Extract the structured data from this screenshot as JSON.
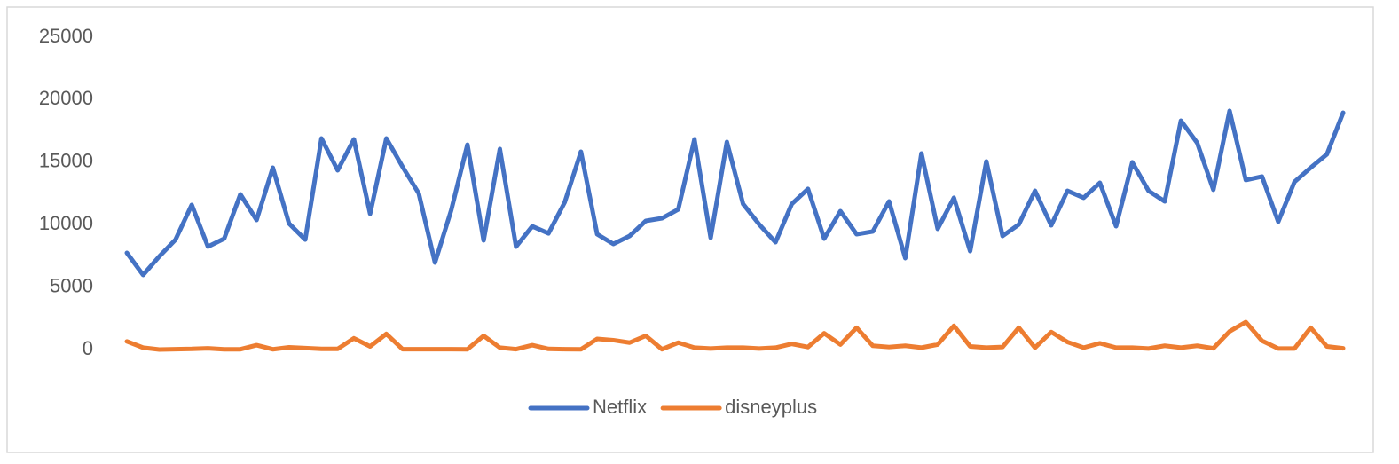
{
  "chart_data": {
    "type": "line",
    "categories": [
      null,
      null,
      null,
      null,
      null,
      null,
      null,
      null,
      null,
      null,
      null,
      null,
      null,
      null,
      null,
      null,
      null,
      null,
      null,
      null,
      null,
      null,
      null,
      null,
      null,
      null,
      null,
      null,
      null,
      null,
      null,
      null,
      null,
      null,
      null,
      null,
      null,
      null,
      null,
      null,
      null,
      null,
      null,
      null,
      null,
      null,
      null,
      null,
      null,
      null,
      null,
      null,
      null,
      null,
      null,
      null,
      null,
      null,
      null,
      null,
      null,
      null,
      null,
      null,
      null,
      null,
      null,
      null,
      null,
      null,
      null,
      null,
      null,
      null,
      null,
      null
    ],
    "series": [
      {
        "name": "Netflix",
        "color": "#4472c4",
        "values": [
          7740,
          5970,
          7460,
          8800,
          11580,
          8240,
          8880,
          12430,
          10370,
          14560,
          10090,
          8800,
          16900,
          14350,
          16830,
          10870,
          16900,
          14630,
          12500,
          6960,
          11150,
          16400,
          8740,
          16050,
          8240,
          9870,
          9300,
          11790,
          15840,
          9230,
          8450,
          9090,
          10300,
          10510,
          11220,
          16830,
          8950,
          16620,
          11650,
          10010,
          8590,
          11650,
          12860,
          8880,
          11080,
          9230,
          9450,
          11860,
          7320,
          15700,
          9660,
          12150,
          7880,
          15060,
          9090,
          10010,
          12710,
          9940,
          12710,
          12150,
          13350,
          9870,
          14990,
          12710,
          11860,
          18320,
          16550,
          12790,
          19110,
          13570,
          13850,
          10230,
          13420,
          14560,
          15630,
          18960
        ]
      },
      {
        "name": "disneyplus",
        "color": "#ed7d31",
        "values": [
          650,
          150,
          0,
          30,
          50,
          100,
          20,
          20,
          350,
          20,
          180,
          120,
          50,
          50,
          900,
          250,
          1250,
          30,
          30,
          30,
          30,
          20,
          1100,
          150,
          30,
          350,
          50,
          30,
          20,
          850,
          750,
          550,
          1100,
          20,
          550,
          150,
          80,
          150,
          150,
          80,
          150,
          450,
          200,
          1300,
          400,
          1750,
          300,
          200,
          300,
          150,
          400,
          1900,
          250,
          150,
          200,
          1750,
          150,
          1400,
          600,
          150,
          500,
          150,
          150,
          80,
          300,
          150,
          300,
          100,
          1450,
          2200,
          700,
          80,
          80,
          1750,
          250,
          100
        ]
      }
    ],
    "ylim": [
      0,
      25000
    ],
    "yticks": [
      0,
      5000,
      10000,
      15000,
      20000,
      25000
    ],
    "grid": false,
    "legend": "bottom"
  }
}
